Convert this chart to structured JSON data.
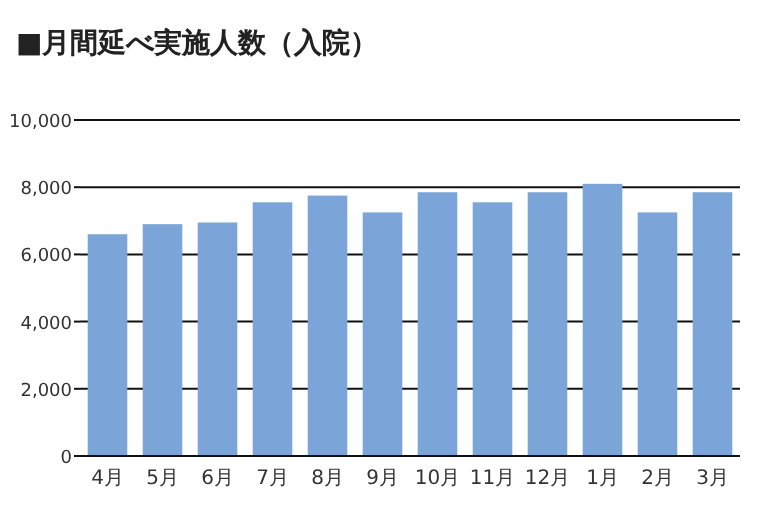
{
  "chart_data": {
    "type": "bar",
    "title": "■月間延べ実施人数（入院）",
    "categories": [
      "4月",
      "5月",
      "6月",
      "7月",
      "8月",
      "9月",
      "10月",
      "11月",
      "12月",
      "1月",
      "2月",
      "3月"
    ],
    "values": [
      6600,
      6900,
      6950,
      7550,
      7750,
      7250,
      7850,
      7550,
      7850,
      8100,
      7250,
      7850
    ],
    "color": "#7ba5d8",
    "ylim": [
      0,
      10000
    ],
    "yticks": [
      {
        "value": 0,
        "label": "0"
      },
      {
        "value": 2000,
        "label": "2,000"
      },
      {
        "value": 4000,
        "label": "4,000"
      },
      {
        "value": 6000,
        "label": "6,000"
      },
      {
        "value": 8000,
        "label": "8,000"
      },
      {
        "value": 10000,
        "label": "10,000"
      }
    ],
    "grid": "y"
  }
}
